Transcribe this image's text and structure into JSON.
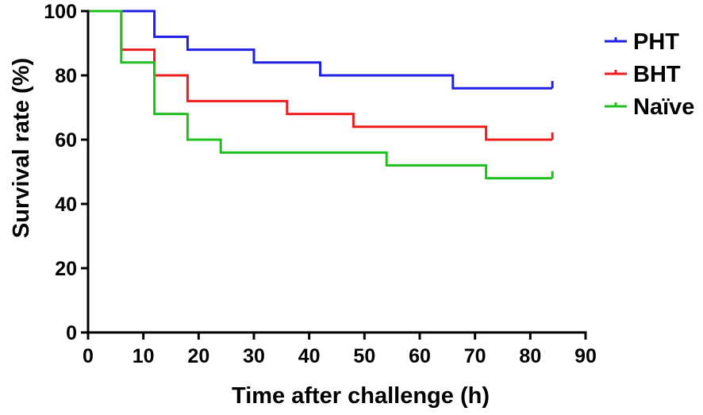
{
  "chart_data": {
    "type": "line",
    "subtype": "kaplan-meier-step",
    "xlabel": "Time after challenge (h)",
    "ylabel": "Survival rate (%)",
    "xlim": [
      0,
      90
    ],
    "ylim": [
      0,
      100
    ],
    "xticks": [
      0,
      10,
      20,
      30,
      40,
      50,
      60,
      70,
      80,
      90
    ],
    "yticks": [
      0,
      20,
      40,
      60,
      80,
      100
    ],
    "grid": false,
    "legend_position": "right",
    "series": [
      {
        "name": "PHT",
        "color": "#1f1fe6",
        "points": [
          [
            0,
            100
          ],
          [
            12,
            92
          ],
          [
            18,
            88
          ],
          [
            30,
            84
          ],
          [
            42,
            80
          ],
          [
            66,
            76
          ],
          [
            84,
            76
          ]
        ],
        "censor": [
          [
            84,
            77
          ]
        ]
      },
      {
        "name": "BHT",
        "color": "#ee1c1c",
        "points": [
          [
            0,
            100
          ],
          [
            6,
            88
          ],
          [
            12,
            80
          ],
          [
            18,
            72
          ],
          [
            36,
            68
          ],
          [
            48,
            64
          ],
          [
            72,
            60
          ],
          [
            84,
            60
          ]
        ],
        "censor": [
          [
            84,
            61
          ]
        ]
      },
      {
        "name": "Naïve",
        "color": "#1fbf1f",
        "points": [
          [
            0,
            100
          ],
          [
            6,
            84
          ],
          [
            12,
            68
          ],
          [
            18,
            60
          ],
          [
            24,
            56
          ],
          [
            54,
            52
          ],
          [
            72,
            48
          ],
          [
            84,
            48
          ]
        ],
        "censor": [
          [
            84,
            49
          ]
        ]
      }
    ]
  }
}
